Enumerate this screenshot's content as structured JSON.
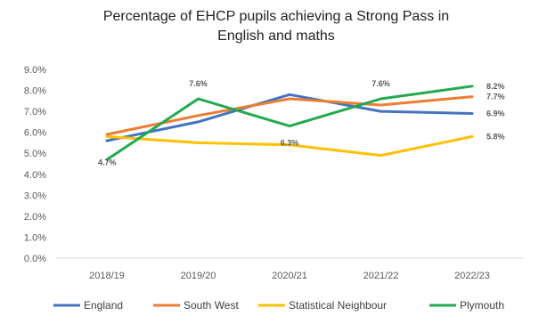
{
  "chart_data": {
    "type": "line",
    "title_lines": [
      "Percentage of EHCP pupils achieving a Strong Pass in",
      "English and maths"
    ],
    "categories": [
      "2018/19",
      "2019/20",
      "2020/21",
      "2021/22",
      "2022/23"
    ],
    "ylim": [
      0,
      9
    ],
    "yticks": [
      "0.0%",
      "1.0%",
      "2.0%",
      "3.0%",
      "4.0%",
      "5.0%",
      "6.0%",
      "7.0%",
      "8.0%",
      "9.0%"
    ],
    "grid": false,
    "legend": "bottom",
    "series": [
      {
        "name": "England",
        "color": "#4472C4",
        "values": [
          5.6,
          6.5,
          7.8,
          7.0,
          6.9
        ]
      },
      {
        "name": "South West",
        "color": "#ED7D31",
        "values": [
          5.9,
          6.8,
          7.6,
          7.3,
          7.7
        ]
      },
      {
        "name": "Statistical Neighbour",
        "color": "#FFC000",
        "values": [
          5.8,
          5.5,
          5.4,
          4.9,
          5.8
        ]
      },
      {
        "name": "Plymouth",
        "color": "#22A94F",
        "values": [
          4.7,
          7.6,
          6.3,
          7.6,
          8.2
        ]
      }
    ],
    "data_labels": [
      {
        "text": "4.7%",
        "series": "Plymouth",
        "index": 0
      },
      {
        "text": "7.6%",
        "series": "Plymouth",
        "index": 1
      },
      {
        "text": "6.3%",
        "series": "Plymouth",
        "index": 2
      },
      {
        "text": "7.6%",
        "series": "Plymouth",
        "index": 3
      },
      {
        "text": "8.2%",
        "series": "Plymouth",
        "index": 4
      },
      {
        "text": "7.7%",
        "series": "South West",
        "index": 4
      },
      {
        "text": "6.9%",
        "series": "England",
        "index": 4
      },
      {
        "text": "5.8%",
        "series": "Statistical Neighbour",
        "index": 4
      }
    ]
  }
}
